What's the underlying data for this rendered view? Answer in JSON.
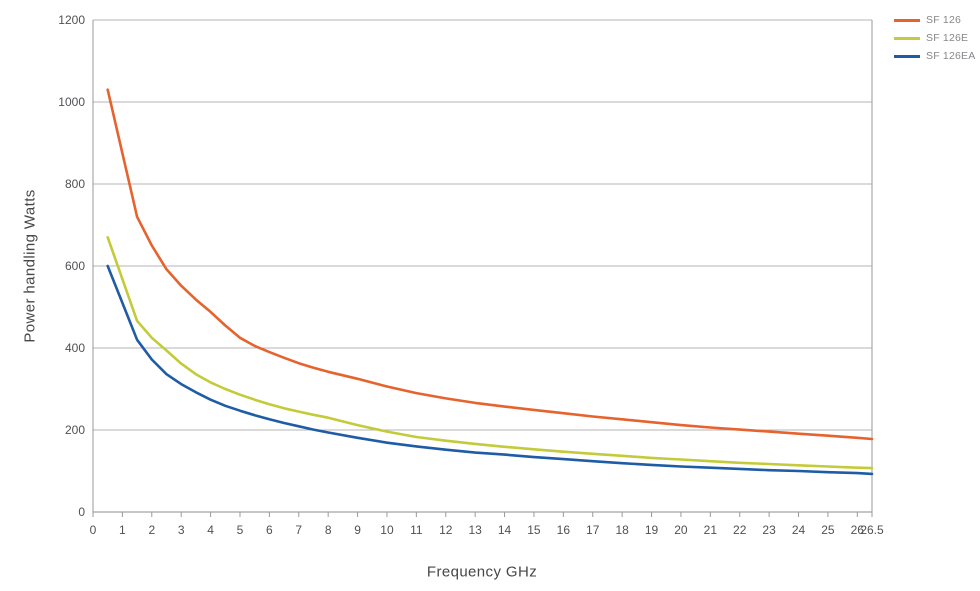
{
  "chart_data": {
    "type": "line",
    "xlabel": "Frequency GHz",
    "ylabel": "Power handling Watts",
    "xlim": [
      0,
      26.5
    ],
    "ylim": [
      0,
      1200
    ],
    "x_ticks": [
      0,
      1,
      2,
      3,
      4,
      5,
      6,
      7,
      8,
      9,
      10,
      11,
      12,
      13,
      14,
      15,
      16,
      17,
      18,
      19,
      20,
      21,
      22,
      23,
      24,
      25,
      26,
      26.5
    ],
    "y_ticks": [
      0,
      200,
      400,
      600,
      800,
      1000,
      1200
    ],
    "grid": "horizontal",
    "legend_position": "top-right",
    "x": [
      0.5,
      1,
      1.5,
      2,
      2.5,
      3,
      3.5,
      4,
      4.5,
      5,
      5.5,
      6,
      6.5,
      7,
      7.5,
      8,
      9,
      10,
      11,
      12,
      13,
      14,
      15,
      16,
      17,
      18,
      19,
      20,
      21,
      22,
      23,
      24,
      25,
      26,
      26.5
    ],
    "series": [
      {
        "name": "SF 126",
        "color": "#E6632D",
        "values": [
          1030,
          875,
          720,
          650,
          592,
          552,
          518,
          488,
          455,
          425,
          405,
          390,
          376,
          363,
          352,
          342,
          325,
          306,
          290,
          277,
          266,
          257,
          249,
          241,
          233,
          226,
          219,
          212,
          206,
          201,
          196,
          191,
          186,
          181,
          178
        ]
      },
      {
        "name": "SF 126E",
        "color": "#C3CB3A",
        "values": [
          670,
          568,
          466,
          425,
          394,
          362,
          336,
          316,
          300,
          286,
          274,
          263,
          253,
          245,
          237,
          230,
          212,
          196,
          183,
          174,
          166,
          159,
          153,
          147,
          142,
          137,
          132,
          128,
          124,
          120,
          117,
          114,
          111,
          108,
          107
        ]
      },
      {
        "name": "SF 126EA",
        "color": "#1E5CA6",
        "values": [
          600,
          510,
          420,
          372,
          336,
          312,
          292,
          274,
          259,
          247,
          236,
          226,
          217,
          209,
          201,
          194,
          181,
          169,
          160,
          152,
          145,
          140,
          134,
          129,
          124,
          119,
          115,
          111,
          108,
          105,
          102,
          100,
          97,
          95,
          93
        ]
      }
    ]
  },
  "colors": {
    "background": "#ffffff",
    "gridline": "#b4b4b6",
    "axis_line": "#9a9a9c",
    "baseline": "#8c8c8e",
    "tick_text": "#515155",
    "axis_title_text": "#47474a",
    "legend_text": "#85878a"
  }
}
